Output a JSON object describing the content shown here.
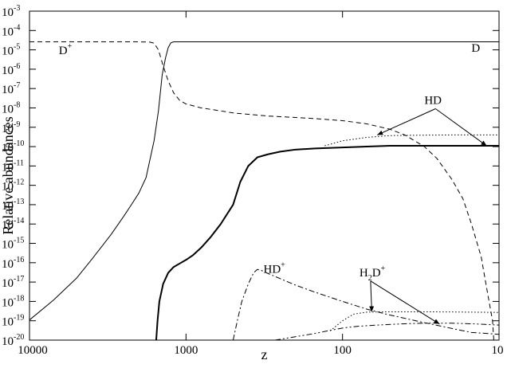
{
  "chart_data": {
    "type": "line",
    "title": "",
    "xlabel": "z",
    "ylabel": "Relative abundances",
    "x_scale": "log",
    "x_reversed": true,
    "xlim": [
      10000,
      10
    ],
    "y_scale": "log",
    "ylim": [
      1e-20,
      0.001
    ],
    "grid": false,
    "legend": "none",
    "x_ticks": [
      {
        "value": 10000,
        "label": "10000"
      },
      {
        "value": 1000,
        "label": "1000"
      },
      {
        "value": 100,
        "label": "100"
      },
      {
        "value": 10,
        "label": "10"
      }
    ],
    "y_ticks": [
      {
        "value": 0.001,
        "base": "10",
        "exp": "-3"
      },
      {
        "value": 0.0001,
        "base": "10",
        "exp": "-4"
      },
      {
        "value": 1e-05,
        "base": "10",
        "exp": "-5"
      },
      {
        "value": 1e-06,
        "base": "10",
        "exp": "-6"
      },
      {
        "value": 1e-07,
        "base": "10",
        "exp": "-7"
      },
      {
        "value": 1e-08,
        "base": "10",
        "exp": "-8"
      },
      {
        "value": 1e-09,
        "base": "10",
        "exp": "-9"
      },
      {
        "value": 1e-10,
        "base": "10",
        "exp": "-10"
      },
      {
        "value": 1e-11,
        "base": "10",
        "exp": "-11"
      },
      {
        "value": 1e-12,
        "base": "10",
        "exp": "-12"
      },
      {
        "value": 1e-13,
        "base": "10",
        "exp": "-13"
      },
      {
        "value": 1e-14,
        "base": "10",
        "exp": "-14"
      },
      {
        "value": 1e-15,
        "base": "10",
        "exp": "-15"
      },
      {
        "value": 1e-16,
        "base": "10",
        "exp": "-16"
      },
      {
        "value": 1e-17,
        "base": "10",
        "exp": "-17"
      },
      {
        "value": 1e-18,
        "base": "10",
        "exp": "-18"
      },
      {
        "value": 1e-19,
        "base": "10",
        "exp": "-19"
      },
      {
        "value": 1e-20,
        "base": "10",
        "exp": "-20"
      }
    ],
    "series": [
      {
        "key": "D",
        "style": "solid-thin",
        "points": [
          [
            10000,
            1.1e-19
          ],
          [
            7000,
            1.2e-18
          ],
          [
            5000,
            1.6e-17
          ],
          [
            4000,
            1.5e-16
          ],
          [
            3500,
            6e-16
          ],
          [
            3000,
            3e-15
          ],
          [
            2500,
            2.5e-14
          ],
          [
            2200,
            1.2e-13
          ],
          [
            2000,
            4e-13
          ],
          [
            1800,
            2.5e-12
          ],
          [
            1600,
            2e-10
          ],
          [
            1500,
            7e-09
          ],
          [
            1420,
            5e-07
          ],
          [
            1350,
            4e-06
          ],
          [
            1300,
            1.3e-05
          ],
          [
            1250,
            2.3e-05
          ],
          [
            1200,
            2.6e-05
          ],
          [
            1000,
            2.6e-05
          ],
          [
            100,
            2.6e-05
          ],
          [
            10,
            2.6e-05
          ]
        ]
      },
      {
        "key": "D+",
        "style": "dashed",
        "points": [
          [
            10000,
            2.6e-05
          ],
          [
            2000,
            2.6e-05
          ],
          [
            1700,
            2.5e-05
          ],
          [
            1600,
            2.2e-05
          ],
          [
            1500,
            1e-05
          ],
          [
            1400,
            1.5e-06
          ],
          [
            1300,
            2.5e-07
          ],
          [
            1200,
            6e-08
          ],
          [
            1100,
            2.5e-08
          ],
          [
            1000,
            1.6e-08
          ],
          [
            800,
            1e-08
          ],
          [
            600,
            7e-09
          ],
          [
            500,
            5.5e-09
          ],
          [
            300,
            3.8e-09
          ],
          [
            200,
            3.2e-09
          ],
          [
            150,
            2.8e-09
          ],
          [
            100,
            2.2e-09
          ],
          [
            70,
            1.5e-09
          ],
          [
            50,
            8e-10
          ],
          [
            40,
            4e-10
          ],
          [
            30,
            1e-10
          ],
          [
            25,
            2.5e-11
          ],
          [
            20,
            2e-12
          ],
          [
            17,
            2e-13
          ],
          [
            15,
            1e-14
          ],
          [
            13,
            2e-16
          ],
          [
            12,
            5e-18
          ],
          [
            11,
            1e-19
          ],
          [
            10.8,
            1e-20
          ]
        ]
      },
      {
        "key": "HD",
        "style": "solid-thick",
        "points": [
          [
            1550,
            1e-20
          ],
          [
            1520,
            1e-19
          ],
          [
            1480,
            1e-18
          ],
          [
            1400,
            8e-18
          ],
          [
            1300,
            3e-17
          ],
          [
            1200,
            6e-17
          ],
          [
            1100,
            9e-17
          ],
          [
            1000,
            1.4e-16
          ],
          [
            900,
            2.5e-16
          ],
          [
            800,
            6e-16
          ],
          [
            700,
            2e-15
          ],
          [
            600,
            1e-14
          ],
          [
            500,
            1e-13
          ],
          [
            450,
            1.5e-12
          ],
          [
            400,
            1e-11
          ],
          [
            350,
            2.8e-11
          ],
          [
            300,
            4e-11
          ],
          [
            250,
            5.5e-11
          ],
          [
            200,
            7e-11
          ],
          [
            150,
            8e-11
          ],
          [
            100,
            9e-11
          ],
          [
            70,
            1e-10
          ],
          [
            50,
            1.1e-10
          ],
          [
            30,
            1.1e-10
          ],
          [
            20,
            1.1e-10
          ],
          [
            10,
            1.1e-10
          ]
        ]
      },
      {
        "key": "HD-dotted",
        "style": "dotted",
        "points": [
          [
            130,
            1.1e-10
          ],
          [
            100,
            2e-10
          ],
          [
            70,
            3e-10
          ],
          [
            50,
            3.7e-10
          ],
          [
            30,
            3.9e-10
          ],
          [
            20,
            4e-10
          ],
          [
            10,
            4e-10
          ]
        ]
      },
      {
        "key": "HD+",
        "style": "dashdot",
        "points": [
          [
            500,
            1e-20
          ],
          [
            470,
            1e-19
          ],
          [
            440,
            1e-18
          ],
          [
            400,
            8e-18
          ],
          [
            370,
            3e-17
          ],
          [
            350,
            4.5e-17
          ],
          [
            330,
            4e-17
          ],
          [
            300,
            2.8e-17
          ],
          [
            250,
            1.5e-17
          ],
          [
            200,
            7e-18
          ],
          [
            150,
            3e-18
          ],
          [
            100,
            1e-18
          ],
          [
            70,
            4e-19
          ],
          [
            50,
            2e-19
          ],
          [
            30,
            8e-20
          ],
          [
            20,
            4e-20
          ],
          [
            15,
            2.5e-20
          ],
          [
            10,
            2e-20
          ]
        ]
      },
      {
        "key": "H2D+",
        "style": "dashdotdot",
        "points": [
          [
            270,
            1e-20
          ],
          [
            200,
            1.5e-20
          ],
          [
            150,
            2.2e-20
          ],
          [
            120,
            3.2e-20
          ],
          [
            100,
            4.2e-20
          ],
          [
            80,
            5.2e-20
          ],
          [
            60,
            6e-20
          ],
          [
            40,
            7e-20
          ],
          [
            30,
            7.5e-20
          ],
          [
            20,
            7.5e-20
          ],
          [
            15,
            7e-20
          ],
          [
            10,
            6e-20
          ]
        ]
      },
      {
        "key": "H2D+-dotted",
        "style": "dotted",
        "points": [
          [
            120,
            3e-20
          ],
          [
            100,
            1e-19
          ],
          [
            85,
            2.2e-19
          ],
          [
            70,
            2.8e-19
          ],
          [
            50,
            2.9e-19
          ],
          [
            30,
            2.9e-19
          ],
          [
            20,
            2.85e-19
          ],
          [
            10,
            2.7e-19
          ]
        ]
      }
    ],
    "annotations": [
      {
        "name": "label-D-plus",
        "text": "D",
        "sup": "+",
        "x": 6500,
        "y": 6e-06
      },
      {
        "name": "label-D",
        "text": "D",
        "sup": "",
        "x": 15,
        "y": 8e-06
      },
      {
        "name": "label-HD",
        "text": "HD",
        "sup": "",
        "x": 30,
        "y": 1.6e-08,
        "arrows_to": [
          [
            60,
            4e-10
          ],
          [
            12,
            1.1e-10
          ]
        ]
      },
      {
        "name": "label-HD-plus",
        "text": "HD",
        "sup": "+",
        "x": 320,
        "y": 3e-17
      },
      {
        "name": "label-H2D-plus",
        "text": "H",
        "sub": "2",
        "after": "D",
        "sup": "+",
        "x": 78,
        "y": 2e-17,
        "arrows_to": [
          [
            65,
            2.9e-19
          ],
          [
            24,
            6.8e-20
          ]
        ]
      }
    ]
  }
}
